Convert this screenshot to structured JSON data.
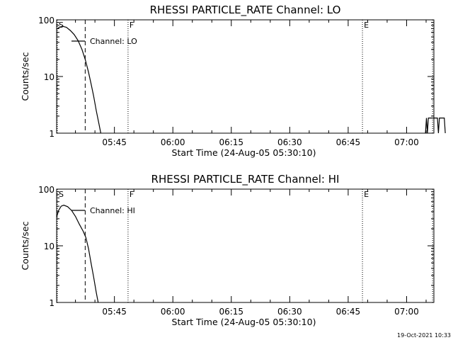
{
  "figure": {
    "background": "#ffffff",
    "foreground": "#000000",
    "timestamp": "19-Oct-2021 10:33"
  },
  "chart_data": [
    {
      "type": "line",
      "title": "RHESSI PARTICLE_RATE Channel: LO",
      "xlabel": "Start Time (24-Aug-05 05:30:10)",
      "ylabel": "Counts/sec",
      "y_scale": "log",
      "ylim": [
        1,
        100
      ],
      "y_ticks": [
        {
          "value": 1,
          "label": "1"
        },
        {
          "value": 10,
          "label": "10"
        },
        {
          "value": 100,
          "label": "100"
        }
      ],
      "xlim": [
        "05:30:10",
        "07:07:00"
      ],
      "x_ticks": [
        "05:45",
        "06:00",
        "06:15",
        "06:30",
        "06:45",
        "07:00"
      ],
      "grid": false,
      "legend": {
        "position": "top-left",
        "entries": [
          "Channel: LO"
        ]
      },
      "series": [
        {
          "name": "Channel: LO",
          "segments": [
            [
              [
                "05:30:10",
                68
              ],
              [
                "05:30:50",
                74
              ],
              [
                "05:31:40",
                77
              ],
              [
                "05:32:40",
                74
              ],
              [
                "05:33:40",
                65
              ],
              [
                "05:34:40",
                55
              ],
              [
                "05:35:40",
                43
              ],
              [
                "05:36:40",
                30
              ],
              [
                "05:37:30",
                20
              ],
              [
                "05:38:20",
                12
              ],
              [
                "05:39:00",
                7.5
              ],
              [
                "05:39:40",
                4.5
              ],
              [
                "05:40:20",
                2.5
              ],
              [
                "05:41:00",
                1.5
              ],
              [
                "05:41:30",
                1
              ]
            ],
            [
              [
                "07:04:50",
                1
              ],
              [
                "07:05:05",
                1.85
              ],
              [
                "07:05:20",
                1
              ],
              [
                "07:05:35",
                1.85
              ],
              [
                "07:07:55",
                1.85
              ],
              [
                "07:08:10",
                1
              ],
              [
                "07:08:25",
                1.85
              ],
              [
                "07:09:40",
                1.85
              ],
              [
                "07:09:55",
                1
              ]
            ]
          ]
        }
      ],
      "markers": [
        {
          "label": "S",
          "time": "05:30:10",
          "style": "dotted"
        },
        {
          "label": "",
          "time": "05:37:30",
          "style": "dashed"
        },
        {
          "label": "F",
          "time": "05:48:30",
          "style": "dotted"
        },
        {
          "label": "E",
          "time": "06:48:40",
          "style": "dotted"
        },
        {
          "label": "",
          "time": "07:06:40",
          "style": "dotted"
        }
      ]
    },
    {
      "type": "line",
      "title": "RHESSI PARTICLE_RATE Channel: HI",
      "xlabel": "Start Time (24-Aug-05 05:30:10)",
      "ylabel": "Counts/sec",
      "y_scale": "log",
      "ylim": [
        1,
        100
      ],
      "y_ticks": [
        {
          "value": 1,
          "label": "1"
        },
        {
          "value": 10,
          "label": "10"
        },
        {
          "value": 100,
          "label": "100"
        }
      ],
      "xlim": [
        "05:30:10",
        "07:07:00"
      ],
      "x_ticks": [
        "05:45",
        "06:00",
        "06:15",
        "06:30",
        "06:45",
        "07:00"
      ],
      "grid": false,
      "legend": {
        "position": "top-left",
        "entries": [
          "Channel: HI"
        ]
      },
      "series": [
        {
          "name": "Channel: HI",
          "segments": [
            [
              [
                "05:30:10",
                32
              ],
              [
                "05:30:40",
                42
              ],
              [
                "05:31:20",
                50
              ],
              [
                "05:32:00",
                52
              ],
              [
                "05:33:00",
                49
              ],
              [
                "05:34:00",
                42
              ],
              [
                "05:35:00",
                33
              ],
              [
                "05:36:00",
                24
              ],
              [
                "05:37:00",
                18
              ],
              [
                "05:37:40",
                14
              ],
              [
                "05:38:20",
                9
              ],
              [
                "05:39:00",
                5
              ],
              [
                "05:39:40",
                2.8
              ],
              [
                "05:40:20",
                1.5
              ],
              [
                "05:40:50",
                1
              ]
            ]
          ]
        }
      ],
      "markers": [
        {
          "label": "S",
          "time": "05:30:10",
          "style": "dotted"
        },
        {
          "label": "",
          "time": "05:37:30",
          "style": "dashed"
        },
        {
          "label": "F",
          "time": "05:48:30",
          "style": "dotted"
        },
        {
          "label": "E",
          "time": "06:48:40",
          "style": "dotted"
        },
        {
          "label": "",
          "time": "07:06:40",
          "style": "dotted"
        }
      ]
    }
  ]
}
